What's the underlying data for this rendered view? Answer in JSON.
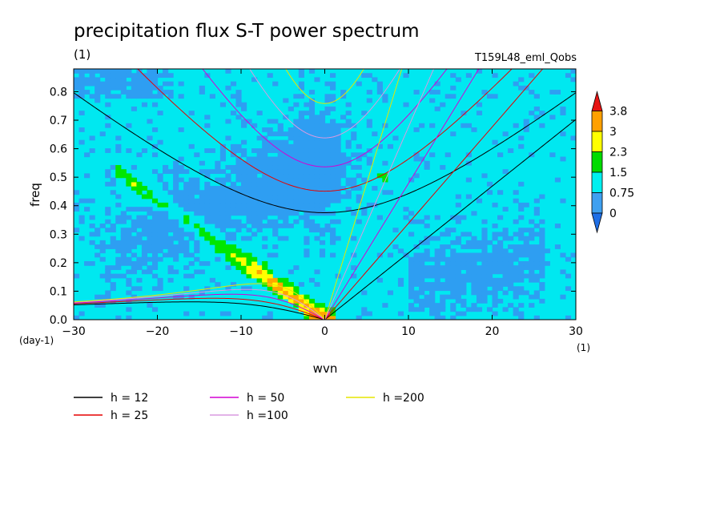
{
  "header": {
    "title": "precipitation flux S-T power spectrum",
    "unit_left": "(1)",
    "run_name": "T159L48_eml_Qobs"
  },
  "chart_data": {
    "type": "heatmap",
    "title": "precipitation flux S-T power spectrum",
    "xlabel": "wvn",
    "ylabel": "freq",
    "x_unit": "(1)",
    "y_unit": "(day-1)",
    "xlim": [
      -30,
      30
    ],
    "ylim": [
      0,
      0.88
    ],
    "x_ticks": [
      -30,
      -20,
      -10,
      0,
      10,
      20,
      30
    ],
    "y_ticks": [
      0.0,
      0.1,
      0.2,
      0.3,
      0.4,
      0.5,
      0.6,
      0.7,
      0.8
    ],
    "grid": false,
    "colorbar": {
      "placement": "right",
      "levels": [
        "0",
        "0.75",
        "1.5",
        "2.3",
        "3",
        "3.8"
      ],
      "colors": [
        "#1f6fe6",
        "#3fa0f0",
        "#00f0f0",
        "#00dc00",
        "#ffff00",
        "#ffa000",
        "#e61414"
      ]
    },
    "field_colors": {
      "background": "#00e8f0",
      "low": "#2e9ef2",
      "band": "#00e600",
      "high": "#ffff00",
      "peak": "#ffa500"
    },
    "dispersion_curves": [
      {
        "label": "h = 12",
        "h": 12,
        "color": "#000000"
      },
      {
        "label": "h = 25",
        "h": 25,
        "color": "#e60000"
      },
      {
        "label": "h = 50",
        "h": 50,
        "color": "#d400d4"
      },
      {
        "label": "h =100",
        "h": 100,
        "color": "#d89ae0"
      },
      {
        "label": "h =200",
        "h": 200,
        "color": "#e6e600"
      }
    ]
  }
}
